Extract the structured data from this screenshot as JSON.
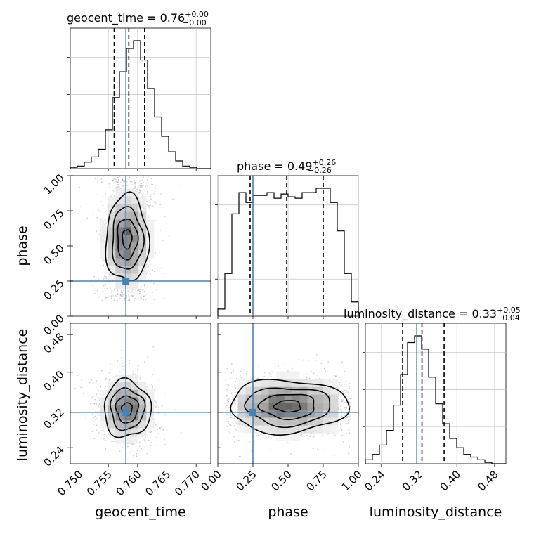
{
  "chart_data": {
    "type": "corner",
    "parameters": [
      "geocent_time",
      "phase",
      "luminosity_distance"
    ],
    "truths": [
      0.758,
      0.25,
      0.315
    ],
    "colors": {
      "truth": "#4682b4",
      "line": "#000000",
      "grid": "#c8c8c8"
    },
    "grid": true,
    "axes": [
      {
        "name": "geocent_time",
        "xlim": [
          0.7485,
          0.7725
        ],
        "ticks": [
          0.75,
          0.755,
          0.76,
          0.765,
          0.77
        ],
        "tick_labels": [
          "0.750",
          "0.755",
          "0.760",
          "0.765",
          "0.770"
        ]
      },
      {
        "name": "phase",
        "xlim": [
          0.0,
          1.0
        ],
        "ticks": [
          0.0,
          0.25,
          0.5,
          0.75,
          1.0
        ],
        "tick_labels": [
          "0.00",
          "0.25",
          "0.50",
          "0.75",
          "1.00"
        ]
      },
      {
        "name": "luminosity_distance",
        "xlim": [
          0.206,
          0.504
        ],
        "ticks": [
          0.24,
          0.32,
          0.4,
          0.48
        ],
        "tick_labels": [
          "0.24",
          "0.32",
          "0.40",
          "0.48"
        ]
      }
    ],
    "titles": [
      {
        "label": "geocent_time = 0.76",
        "sup": "+0.00",
        "sub": "−0.00"
      },
      {
        "label": "phase = 0.49",
        "sup": "+0.26",
        "sub": "−0.26"
      },
      {
        "label": "luminosity_distance = 0.33",
        "sup": "+0.05",
        "sub": "−0.04"
      }
    ],
    "histograms": [
      {
        "param": "geocent_time",
        "range": [
          0.7485,
          0.7725
        ],
        "quantiles": [
          0.756,
          0.7585,
          0.7612
        ],
        "counts": [
          1,
          2,
          5,
          9,
          15,
          30,
          55,
          75,
          93,
          99,
          84,
          62,
          40,
          25,
          13,
          6,
          2,
          1,
          0,
          0
        ]
      },
      {
        "param": "phase",
        "range": [
          0.0,
          1.0
        ],
        "quantiles": [
          0.23,
          0.49,
          0.75
        ],
        "counts": [
          5,
          30,
          72,
          87,
          80,
          85,
          85,
          87,
          83,
          86,
          84,
          83,
          87,
          87,
          90,
          90,
          80,
          60,
          30,
          10
        ]
      },
      {
        "param": "luminosity_distance",
        "range": [
          0.206,
          0.504
        ],
        "quantiles": [
          0.285,
          0.326,
          0.373
        ],
        "counts": [
          3,
          7,
          14,
          25,
          44,
          67,
          91,
          96,
          86,
          65,
          45,
          30,
          19,
          12,
          7,
          5,
          3,
          1,
          0,
          0
        ]
      }
    ],
    "scatter_2d": [
      {
        "x": "geocent_time",
        "y": "phase",
        "peak": [
          0.7582,
          0.55
        ]
      },
      {
        "x": "geocent_time",
        "y": "luminosity_distance",
        "peak": [
          0.7582,
          0.32
        ]
      },
      {
        "x": "phase",
        "y": "luminosity_distance",
        "peak": [
          0.5,
          0.33
        ]
      }
    ]
  }
}
